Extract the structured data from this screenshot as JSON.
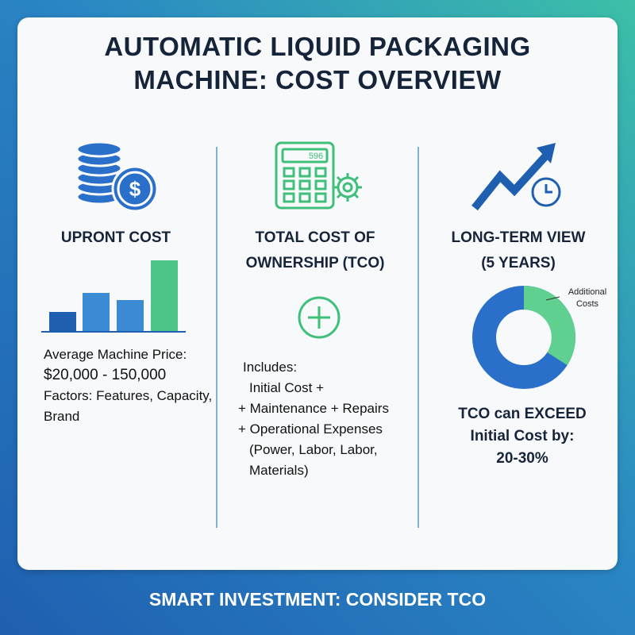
{
  "header": {
    "title_lines": [
      "AUTOMATIC LIQUID PACKAGING",
      "MACHINE: COST OVERVIEW"
    ]
  },
  "columns": [
    {
      "heading_lines": [
        "UPRONT COST"
      ],
      "body_lines": [
        "Average Machine Price:",
        "$20,000 - 150,000",
        "Factors: Features, Capacity,",
        "Brand"
      ]
    },
    {
      "icon_display": "596",
      "heading_lines": [
        "TOTAL COST OF",
        "OWNERSHIP (TCO)"
      ],
      "body_lines": [
        "Includes:",
        "Initial Cost +",
        "+ Maintenance + Repairs",
        "+ Operational Expenses",
        "(Power, Labor, Labor,",
        "Materials)"
      ]
    },
    {
      "heading_lines": [
        "LONG-TERM VIEW",
        "(5 YEARS)"
      ],
      "donut_label_lines": [
        "Additional",
        "Costs"
      ],
      "body_lines": [
        "TCO can EXCEED",
        "Initial Cost by:",
        "20-30%"
      ]
    }
  ],
  "footer": {
    "text": "SMART INVESTMENT: CONSIDER TCO"
  }
}
